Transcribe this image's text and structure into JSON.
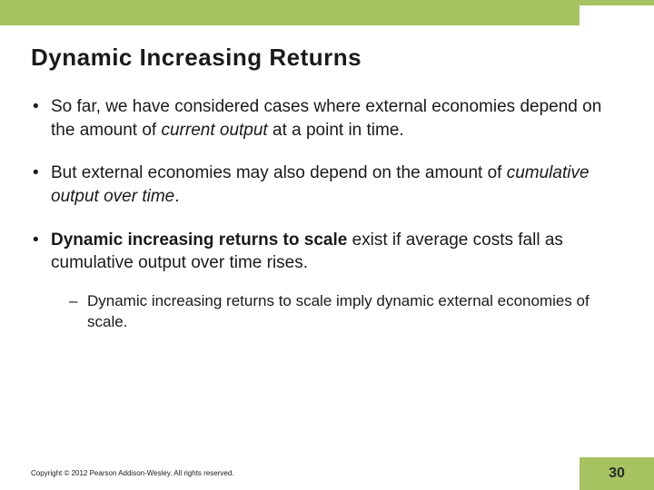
{
  "colors": {
    "accent": "#a6c261",
    "text": "#1a1a1a",
    "background": "#ffffff"
  },
  "title": "Dynamic Increasing Returns",
  "bullets": [
    {
      "pre": "So far, we have considered cases where external economies depend on the amount of ",
      "em": "current output",
      "post": " at a point in time."
    },
    {
      "pre": "But external economies may also depend on the amount of ",
      "em": "cumulative output over time",
      "post": "."
    },
    {
      "bold": "Dynamic increasing returns to scale",
      "post": " exist if average costs fall as cumulative output over time rises.",
      "sub": "Dynamic increasing returns to scale imply dynamic external economies of scale."
    }
  ],
  "copyright": "Copyright © 2012 Pearson Addison-Wesley. All rights reserved.",
  "page_number": "30"
}
